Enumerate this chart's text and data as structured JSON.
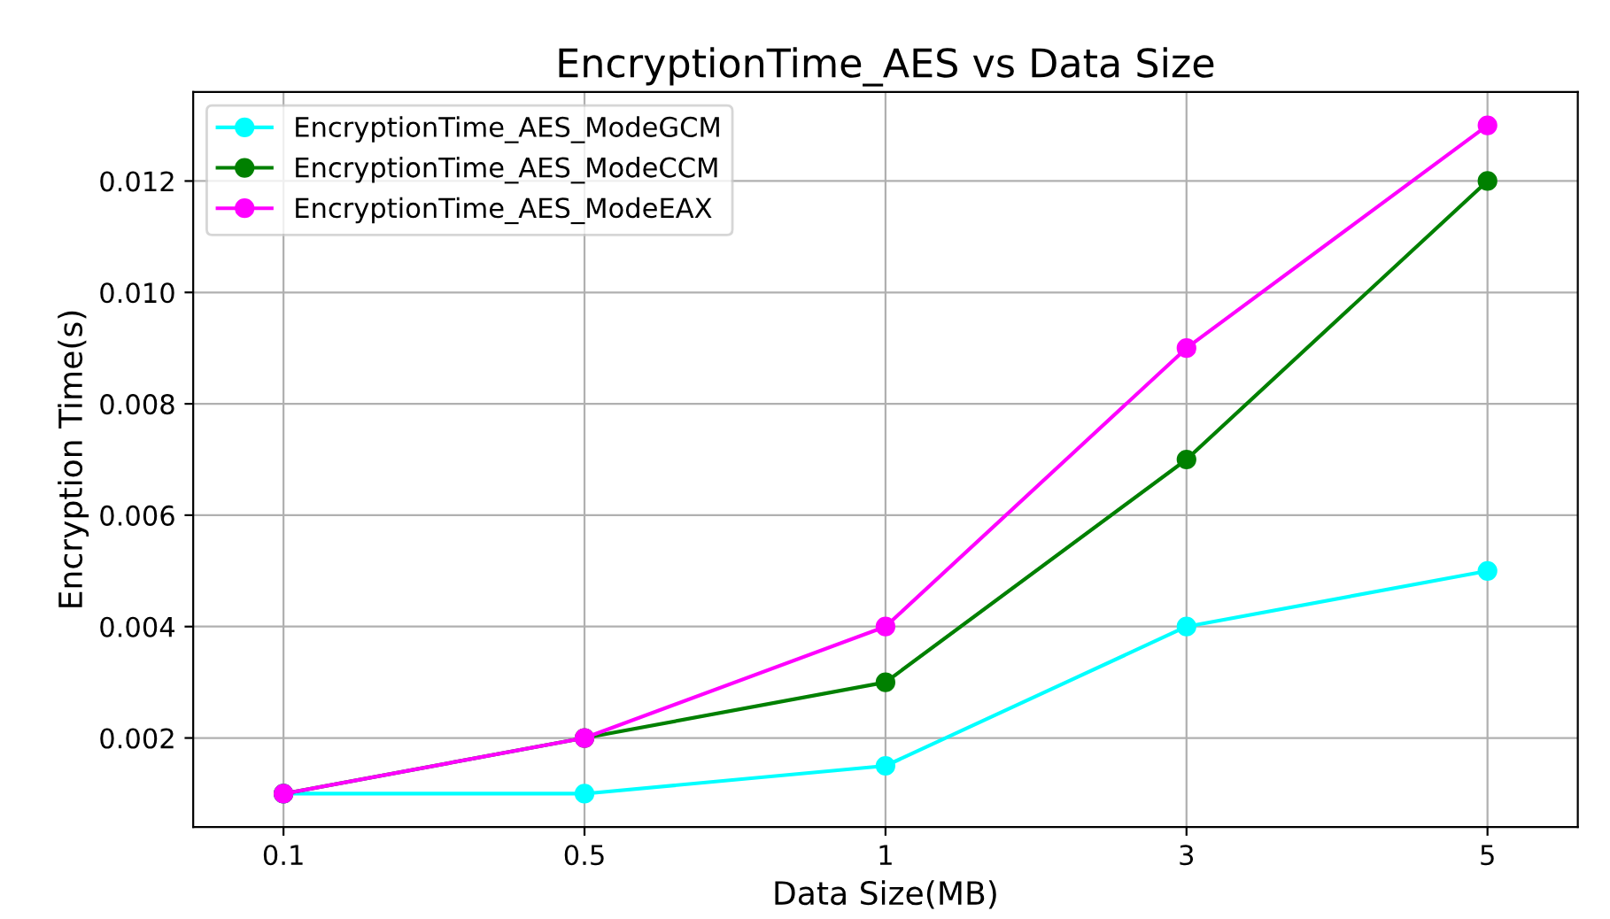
{
  "chart_data": {
    "type": "line",
    "title": "EncryptionTime_AES vs Data Size",
    "xlabel": "Data Size(MB)",
    "ylabel": "Encryption Time(s)",
    "categories": [
      "0.1",
      "0.5",
      "1",
      "3",
      "5"
    ],
    "series": [
      {
        "name": "EncryptionTime_AES_ModeGCM",
        "color": "#00ffff",
        "values": [
          0.001,
          0.001,
          0.0015,
          0.004,
          0.005
        ]
      },
      {
        "name": "EncryptionTime_AES_ModeCCM",
        "color": "#008000",
        "values": [
          0.001,
          0.002,
          0.003,
          0.007,
          0.012
        ]
      },
      {
        "name": "EncryptionTime_AES_ModeEAX",
        "color": "#ff00ff",
        "values": [
          0.001,
          0.002,
          0.004,
          0.009,
          0.013
        ]
      }
    ],
    "ylim": [
      0.0004,
      0.0136
    ],
    "yticks": [
      {
        "value": 0.002,
        "label": "0.002"
      },
      {
        "value": 0.004,
        "label": "0.004"
      },
      {
        "value": 0.006,
        "label": "0.006"
      },
      {
        "value": 0.008,
        "label": "0.008"
      },
      {
        "value": 0.01,
        "label": "0.010"
      },
      {
        "value": 0.012,
        "label": "0.012"
      }
    ],
    "grid": true,
    "legend": "top left",
    "marker": "circle",
    "line_style": "solid"
  }
}
